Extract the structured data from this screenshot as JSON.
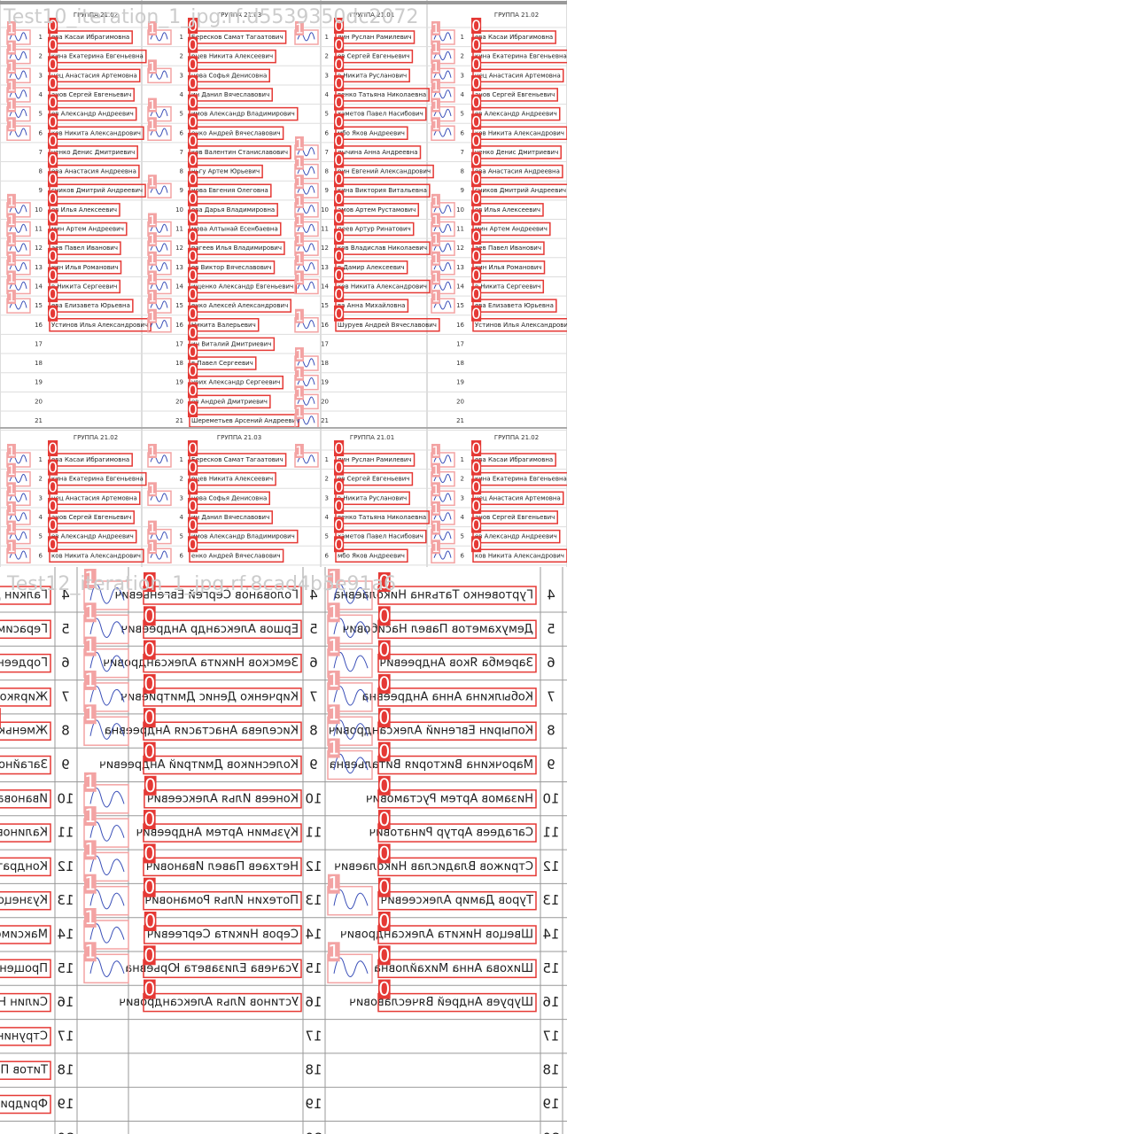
{
  "classes": [
    "0",
    "1"
  ],
  "tiles": [
    {
      "caption": "Test10_iteration_1_jpg.rf.d5539350dc2072",
      "groups": [
        {
          "header": "ГРУППА 21.02",
          "rows": [
            {
              "n": "1",
              "name": "ева Касаи Ибрагимовна",
              "signed": true
            },
            {
              "n": "2",
              "name": "кина Екатерина Евгеньевна",
              "signed": true
            },
            {
              "n": "3",
              "name": "нец Анастасия Артемовна",
              "signed": true
            },
            {
              "n": "4",
              "name": "анов Сергей Евгеньевич",
              "signed": true
            },
            {
              "n": "5",
              "name": "ев Александр Андреевич",
              "signed": true
            },
            {
              "n": "6",
              "name": "ков Никита Александрович",
              "signed": true
            },
            {
              "n": "7",
              "name": "ченко Денис Дмитриевич",
              "signed": false
            },
            {
              "n": "8",
              "name": "ева Анастасия Андреевна",
              "signed": false
            },
            {
              "n": "9",
              "name": "сников Дмитрий Андреевич",
              "signed": false
            },
            {
              "n": "10",
              "name": "ев Илья Алексеевич",
              "signed": true
            },
            {
              "n": "11",
              "name": "мин Артем Андреевич",
              "signed": true
            },
            {
              "n": "12",
              "name": "аев Павел Иванович",
              "signed": true
            },
            {
              "n": "13",
              "name": "хин Илья Романович",
              "signed": true
            },
            {
              "n": "14",
              "name": "в Никита Сергеевич",
              "signed": true
            },
            {
              "n": "15",
              "name": "ева Елизавета Юрьевна",
              "signed": true
            },
            {
              "n": "16",
              "name": "Устинов Илья Александрович",
              "signed": false
            },
            {
              "n": "17"
            },
            {
              "n": "18"
            },
            {
              "n": "19"
            },
            {
              "n": "20"
            },
            {
              "n": "21"
            }
          ]
        },
        {
          "header": "ГРУППА 21.03",
          "rows": [
            {
              "n": "1",
              "name": "Бересков Самат Тагаатович",
              "signed": true
            },
            {
              "n": "2",
              "name": "рцев Никита Алексеевич",
              "signed": false
            },
            {
              "n": "3",
              "name": "нова Софья Денисовна",
              "signed": true
            },
            {
              "n": "4",
              "name": "ин Данил Вячеславович",
              "signed": false
            },
            {
              "n": "5",
              "name": "имов Александр Владимирович",
              "signed": true
            },
            {
              "n": "6",
              "name": "енко Андрей Вячеславович",
              "signed": true
            },
            {
              "n": "7",
              "name": "ков Валентин Станиславович",
              "signed": false
            },
            {
              "n": "8",
              "name": "ньгу Артем Юрьевич",
              "signed": false
            },
            {
              "n": "9",
              "name": "нова Евгения Олеговна",
              "signed": true
            },
            {
              "n": "10",
              "name": "ова Дарья Владимировна",
              "signed": false
            },
            {
              "n": "11",
              "name": "мова Алтынай Есенбаевна",
              "signed": true
            },
            {
              "n": "12",
              "name": "рагеев Илья Владимирович",
              "signed": true
            },
            {
              "n": "13",
              "name": "ов Виктор Вячеславович",
              "signed": true
            },
            {
              "n": "14",
              "name": "ищенко Александр Евгеньевич",
              "signed": true
            },
            {
              "n": "15",
              "name": "енко Алексей Александрович",
              "signed": true
            },
            {
              "n": "16",
              "name": "Никита Валерьевич",
              "signed": true
            },
            {
              "n": "17",
              "name": "ин Виталий Дмитриевич",
              "signed": false
            },
            {
              "n": "18",
              "name": "в Павел Сергеевич",
              "signed": false
            },
            {
              "n": "19",
              "name": "урих Александр Сергеевич",
              "signed": false
            },
            {
              "n": "20",
              "name": "ев Андрей Дмитриевич",
              "signed": false
            },
            {
              "n": "21",
              "name": "Шереметьев Арсений Андреевич",
              "signed": false
            }
          ]
        },
        {
          "header": "ГРУППА 21.01",
          "rows": [
            {
              "n": "1",
              "name": "лин Руслан Рамилевич",
              "signed": true
            },
            {
              "n": "2",
              "name": "ев Сергей Евгеньевич",
              "signed": false
            },
            {
              "n": "3",
              "name": "в Никита Русланович",
              "signed": false
            },
            {
              "n": "4",
              "name": "венко Татьяна Николаевна",
              "signed": false
            },
            {
              "n": "5",
              "name": "хаметов Павел Насибович",
              "signed": false
            },
            {
              "n": "6",
              "name": "мбо Яков Андреевич",
              "signed": false
            },
            {
              "n": "7",
              "name": "лычина Анна Андреевна",
              "signed": true
            },
            {
              "n": "8",
              "name": "рин Евгений Александрович",
              "signed": true
            },
            {
              "n": "9",
              "name": "кина Виктория Витальевна",
              "signed": true
            },
            {
              "n": "10",
              "name": "амов Артем Рустамович",
              "signed": true
            },
            {
              "n": "11",
              "name": "деев Артур Ринатович",
              "signed": true
            },
            {
              "n": "12",
              "name": "ков Владислав Николаевич",
              "signed": true
            },
            {
              "n": "13",
              "name": "в Дамир Алексеевич",
              "signed": true
            },
            {
              "n": "14",
              "name": "ков Никита Александрович",
              "signed": true
            },
            {
              "n": "15",
              "name": "ва Анна Михайловна",
              "signed": false
            },
            {
              "n": "16",
              "name": "Шуруев Андрей Вячеславович",
              "signed": true
            },
            {
              "n": "17"
            },
            {
              "n": "18",
              "signed": true
            },
            {
              "n": "19",
              "signed": true
            },
            {
              "n": "20",
              "signed": true
            },
            {
              "n": "21",
              "signed": true
            }
          ]
        }
      ]
    },
    {
      "caption": "Test12_iteration_1_jpg.rf.8cad4b5e91a6",
      "rows": [
        {
          "n": "4",
          "left": "Галкин Да",
          "mid": "Голованов Сергей Евгеньевич",
          "right": "Гуртовенко Татьяна Николаевна",
          "mid_signed": true,
          "right_signed": true
        },
        {
          "n": "5",
          "left": "Герасимов",
          "mid": "Ершов Александр Андреевич",
          "right": "Демухаметов Павел Насибович",
          "mid_signed": true,
          "right_signed": true
        },
        {
          "n": "6",
          "left": "Гордеенко",
          "mid": "Земсков Никита Александрович",
          "right": "Заремба Яков Андреевич",
          "mid_signed": true,
          "right_signed": true
        },
        {
          "n": "7",
          "left": "Жирякова В",
          "mid": "Кирченко Денис Дмитриевич",
          "right": "Кобылкина Анна Андреевна",
          "mid_signed": true,
          "right_signed": true
        },
        {
          "n": "8",
          "left": "Жменько",
          "mid": "Киселева Анастасия Андреевна",
          "right": "Копырин Евгений Александрович",
          "mid_signed": true,
          "right_signed": true
        },
        {
          "n": "9",
          "left": "Загайнова",
          "mid": "Колесников Дмитрий Андреевич",
          "right": "Марочкина Виктория Витальевна",
          "mid_signed": false,
          "right_signed": true
        },
        {
          "n": "10",
          "left": "Иванова Д",
          "mid": "Конеев Илья Алексеевич",
          "right": "Низамов Артем Рустамович",
          "mid_signed": true,
          "right_signed": false
        },
        {
          "n": "11",
          "left": "Калинова",
          "mid": "Кузьмин Артем Андреевич",
          "right": "Сагадеев Артур Ринатович",
          "mid_signed": true,
          "right_signed": false
        },
        {
          "n": "12",
          "left": "Кондратьев",
          "mid": "Нетхаев Павел Иванович",
          "right": "Стрижов Владислав Николаевич",
          "mid_signed": true,
          "right_signed": false
        },
        {
          "n": "13",
          "left": "Кузнецов",
          "mid": "Потехин Илья Романович",
          "right": "Туров Дамир Алексеевич",
          "mid_signed": true,
          "right_signed": true
        },
        {
          "n": "14",
          "left": "Максимов",
          "mid": "Серов Никита Сергеевич",
          "right": "Швецов Никита Александрович",
          "mid_signed": true,
          "right_signed": false
        },
        {
          "n": "15",
          "left": "Прощенко",
          "mid": "Усачева Елизавета Юрьевна",
          "right": "Шихова Анна Михайловна",
          "mid_signed": true,
          "right_signed": true
        },
        {
          "n": "16",
          "left": "Силин Ник",
          "mid": "Устинов Илья Александрович",
          "right": "Шуруев Андрей Вячеславович",
          "mid_signed": false,
          "right_signed": false
        },
        {
          "n": "17",
          "left": "Струнин В"
        },
        {
          "n": "18",
          "left": "Титов Пав"
        },
        {
          "n": "19",
          "left": "Фридрих А"
        },
        {
          "n": "20"
        }
      ]
    }
  ]
}
